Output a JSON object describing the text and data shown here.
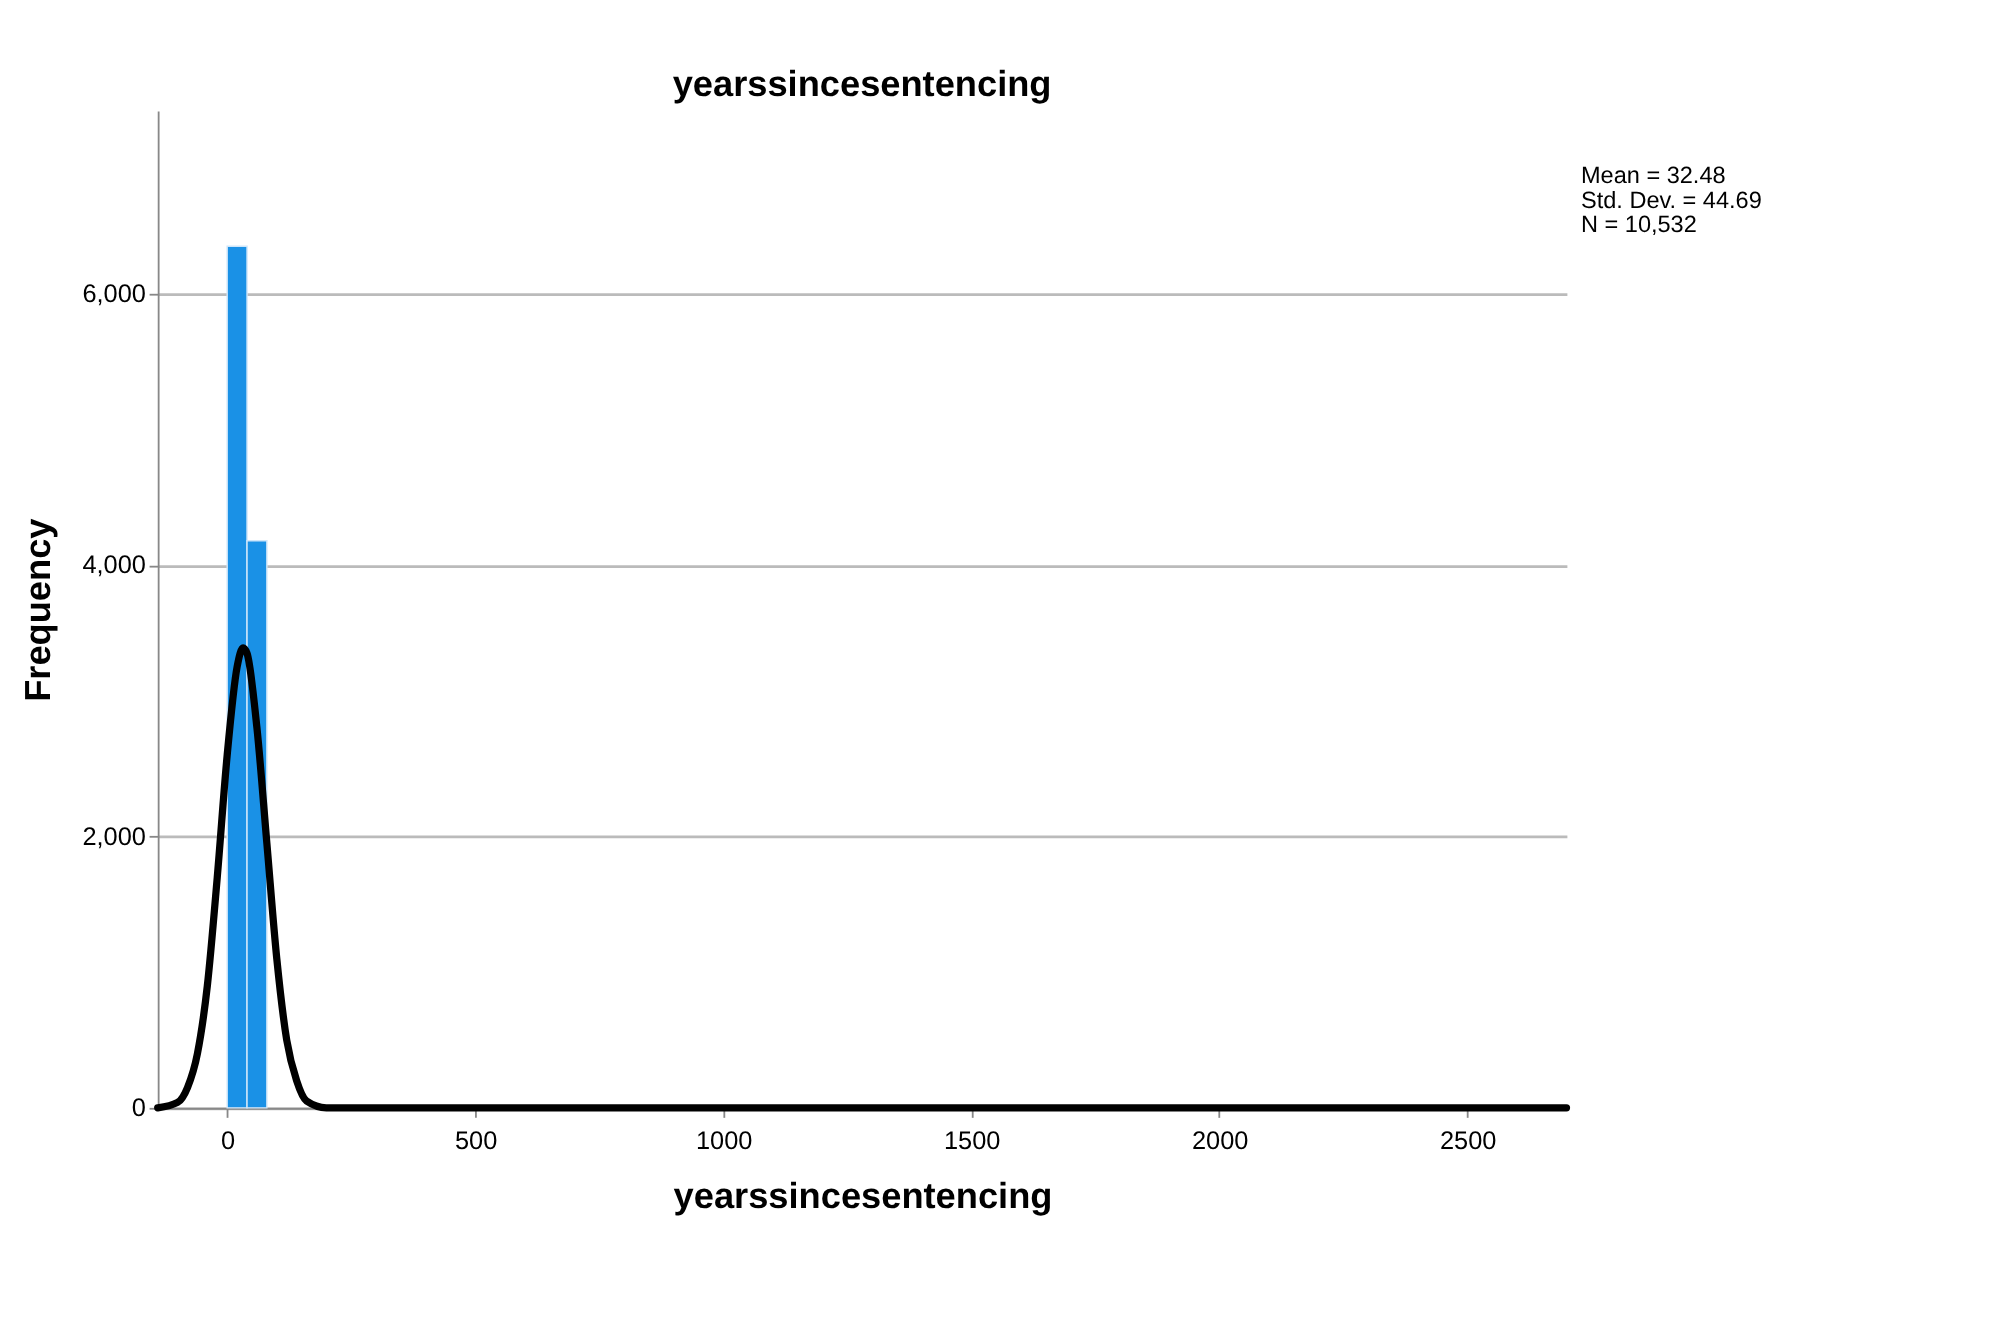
{
  "chart_data": {
    "type": "histogram",
    "title": "yearssincesentencing",
    "xlabel": "yearssincesentencing",
    "ylabel": "Frequency",
    "bins": [
      0,
      40,
      80
    ],
    "series": [
      {
        "color": "#1a91e6",
        "values": [
          6350,
          4180
        ]
      },
      {
        "type": "line",
        "color": "#000000",
        "x": [
          -140,
          -100,
          -80,
          -60,
          -40,
          -20,
          0,
          20,
          32,
          40,
          60,
          80,
          100,
          120,
          140,
          160,
          200,
          300,
          2700
        ],
        "values": [
          0,
          40,
          150,
          400,
          900,
          1700,
          2600,
          3250,
          3390,
          3350,
          2800,
          1950,
          1100,
          500,
          200,
          50,
          0,
          0,
          0
        ]
      }
    ],
    "xlim": [
      -140,
      2700
    ],
    "xticks": [
      0,
      500,
      1000,
      1500,
      2000,
      2500
    ],
    "ylim": [
      0,
      7350
    ],
    "yticks": [
      {
        "value": 0,
        "label": "0"
      },
      {
        "value": 2000,
        "label": "2,000"
      },
      {
        "value": 4000,
        "label": "4,000"
      },
      {
        "value": 6000,
        "label": "6,000"
      }
    ],
    "grid": "y",
    "annotations": [
      "Mean = 32.48",
      "Std. Dev. = 44.69",
      "N = 10,532"
    ]
  }
}
